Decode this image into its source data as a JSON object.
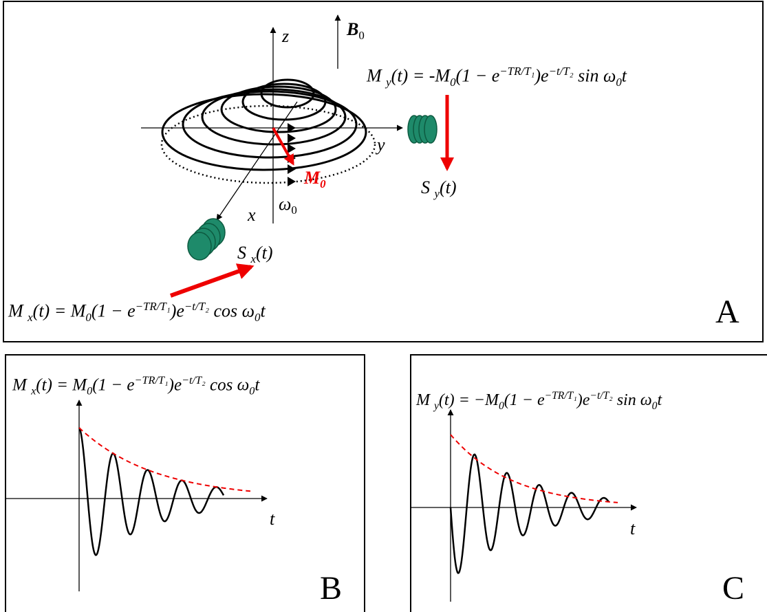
{
  "panel_a": {
    "z_label": "z",
    "b0": {
      "t": "B",
      "sub": "0"
    },
    "y_label": "y",
    "x_label": "x",
    "omega": {
      "t": "ω",
      "sub": "0"
    },
    "m0": {
      "t": "M",
      "sub": "0"
    },
    "sy": [
      {
        "t": "S "
      },
      {
        "sub": "y"
      },
      {
        "t": "(t)"
      }
    ],
    "sx": [
      {
        "t": "S "
      },
      {
        "sub": "x"
      },
      {
        "t": "(t)"
      }
    ],
    "my_equation": [
      {
        "t": "M "
      },
      {
        "sub": "y"
      },
      {
        "t": "(t) = -M"
      },
      {
        "sub": "0"
      },
      {
        "t": "(1 − e"
      },
      {
        "sup": "−TR/T₁"
      },
      {
        "t": ")e"
      },
      {
        "sup": "−t/T₂"
      },
      {
        "t": " sin ω"
      },
      {
        "sub": "0"
      },
      {
        "t": "t"
      }
    ],
    "mx_equation": [
      {
        "t": "M "
      },
      {
        "sub": "x"
      },
      {
        "t": "(t) = M"
      },
      {
        "sub": "0"
      },
      {
        "t": "(1 − e"
      },
      {
        "sup": "−TR/T₁"
      },
      {
        "t": ")e"
      },
      {
        "sup": "−t/T₂"
      },
      {
        "t": " cos ω"
      },
      {
        "sub": "0"
      },
      {
        "t": "t"
      }
    ],
    "letter": "A"
  },
  "panel_b": {
    "equation": [
      {
        "t": "M "
      },
      {
        "sub": "x"
      },
      {
        "t": "(t) = M"
      },
      {
        "sub": "0"
      },
      {
        "t": "(1 − e"
      },
      {
        "sup": "−TR/T₁"
      },
      {
        "t": ")e"
      },
      {
        "sup": "−t/T₂"
      },
      {
        "t": " cos ω"
      },
      {
        "sub": "0"
      },
      {
        "t": "t"
      }
    ],
    "t_label": "t",
    "letter": "B"
  },
  "panel_c": {
    "equation": [
      {
        "t": "M "
      },
      {
        "sub": "y"
      },
      {
        "t": "(t) = −M"
      },
      {
        "sub": "0"
      },
      {
        "t": "(1 − e"
      },
      {
        "sup": "−TR/T₁"
      },
      {
        "t": ")e"
      },
      {
        "sup": "−t/T₂"
      },
      {
        "t": " sin ω"
      },
      {
        "sub": "0"
      },
      {
        "t": "t"
      }
    ],
    "t_label": "t",
    "letter": "C"
  }
}
